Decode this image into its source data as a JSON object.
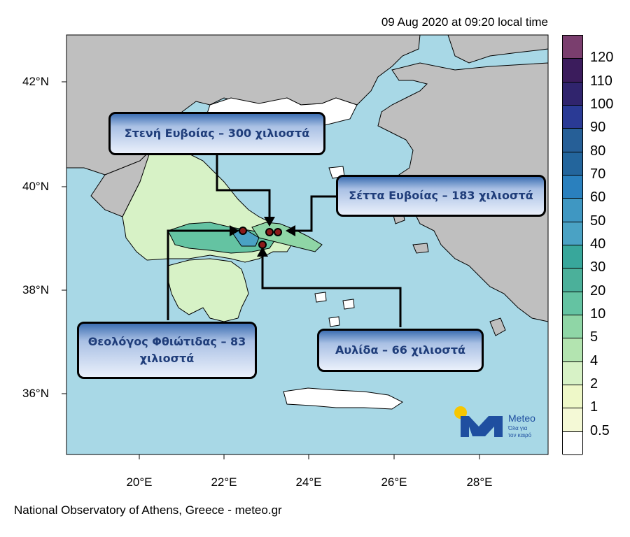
{
  "timestamp": "09 Aug 2020 at 09:20 local time",
  "credit": "National Observatory of Athens, Greece - meteo.gr",
  "axes": {
    "lat_labels": [
      "42°N",
      "40°N",
      "38°N",
      "36°N"
    ],
    "lon_labels": [
      "20°E",
      "22°E",
      "24°E",
      "26°E",
      "28°E"
    ]
  },
  "callouts": [
    {
      "id": "steni",
      "text": "Στενή Ευβοίας – 300 χιλιοστά",
      "value_mm": 300
    },
    {
      "id": "setta",
      "text": "Σέττα Ευβοίας – 183 χιλιοστά",
      "value_mm": 183
    },
    {
      "id": "theologos",
      "text": "Θεολόγος Φθιώτιδας – 83 χιλιοστά",
      "value_mm": 83
    },
    {
      "id": "avlida",
      "text": "Αυλίδα – 66 χιλιοστά",
      "value_mm": 66
    }
  ],
  "legend": {
    "levels": [
      "120",
      "110",
      "100",
      "90",
      "80",
      "70",
      "60",
      "50",
      "40",
      "30",
      "20",
      "10",
      "5",
      "4",
      "2",
      "1",
      "0.5"
    ],
    "colors": [
      "#7a3e6e",
      "#3b1c5c",
      "#30246d",
      "#2a3a95",
      "#265f97",
      "#23659c",
      "#2a80be",
      "#3f97c2",
      "#4aa2c4",
      "#38a79b",
      "#4bb09a",
      "#64c3a2",
      "#8fd6a6",
      "#b3e4b0",
      "#d7f2c6",
      "#eef8c8",
      "#f4f9d6",
      "#ffffff"
    ]
  },
  "colors": {
    "sea": "#a8d8e6",
    "land_outside": "#bfbfbf",
    "greece_land": "#ffffff",
    "logo_blue": "#1f4fa0",
    "logo_sun": "#f7c600",
    "station_marker": "#8b1a1a"
  },
  "logo": {
    "name": "Meteo",
    "tagline_1": "Όλα για",
    "tagline_2": "τον καιρό"
  }
}
